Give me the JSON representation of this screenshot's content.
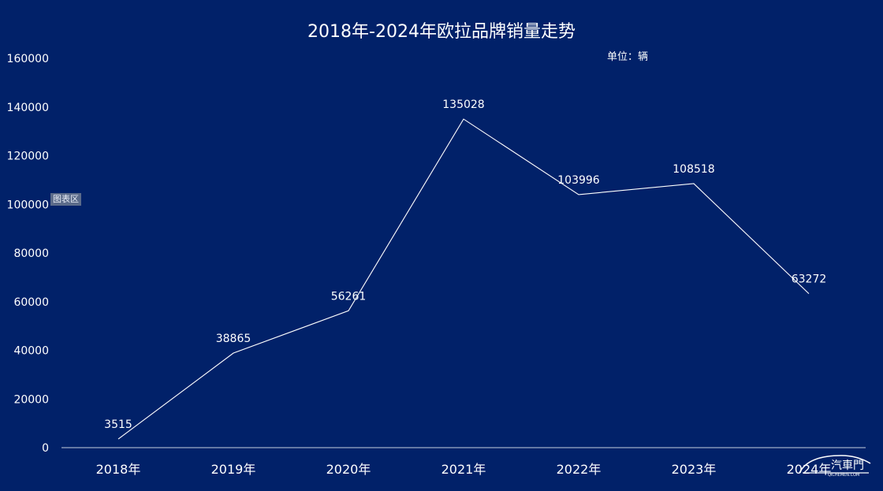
{
  "chart_data": {
    "type": "line",
    "title": "2018年-2024年欧拉品牌销量走势",
    "unit_label": "单位：辆",
    "plot_area_label": "图表区",
    "categories": [
      "2018年",
      "2019年",
      "2020年",
      "2021年",
      "2022年",
      "2023年",
      "2024年"
    ],
    "values": [
      3515,
      38865,
      56261,
      135028,
      103996,
      108518,
      63272
    ],
    "ylim": [
      0,
      160000
    ],
    "yticks": [
      0,
      20000,
      40000,
      60000,
      80000,
      100000,
      120000,
      140000,
      160000
    ],
    "grid": false,
    "line_color": "#ffffff",
    "background_color": "#012169"
  },
  "watermark": {
    "text": "汽車門",
    "subtext": "QICHEMEN.COM"
  }
}
